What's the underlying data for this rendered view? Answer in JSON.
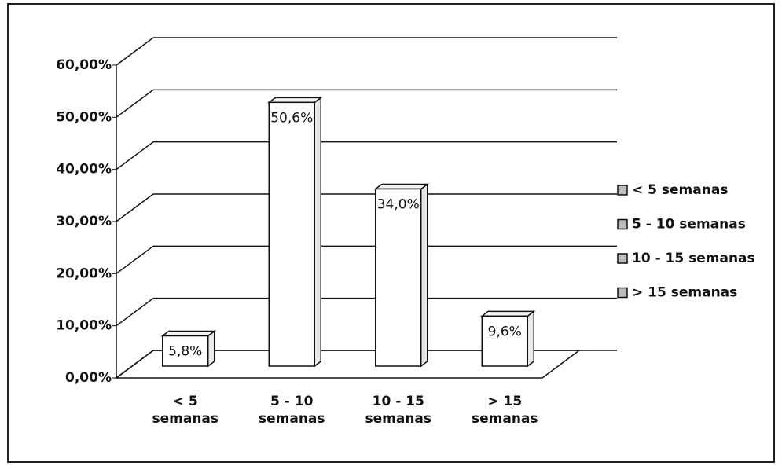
{
  "chart_data": {
    "type": "bar3d",
    "categories": [
      "< 5 semanas",
      "5 - 10 semanas",
      "10 - 15 semanas",
      "> 15 semanas"
    ],
    "values": [
      5.8,
      50.6,
      34.0,
      9.6
    ],
    "value_labels": [
      "5,8%",
      "50,6%",
      "34,0%",
      "9,6%"
    ],
    "color": "#ffffff",
    "ylim": [
      0,
      60
    ],
    "yticks": [
      {
        "value": 0,
        "label": "0,00%"
      },
      {
        "value": 10,
        "label": "10,00%"
      },
      {
        "value": 20,
        "label": "20,00%"
      },
      {
        "value": 30,
        "label": "30,00%"
      },
      {
        "value": 40,
        "label": "40,00%"
      },
      {
        "value": 50,
        "label": "50,00%"
      },
      {
        "value": 60,
        "label": "60,00%"
      }
    ],
    "grid": true,
    "legend": "right"
  }
}
